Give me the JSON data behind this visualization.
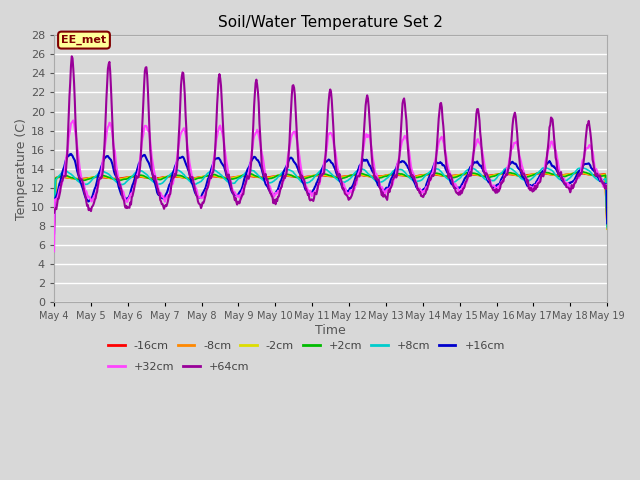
{
  "title": "Soil/Water Temperature Set 2",
  "xlabel": "Time",
  "ylabel": "Temperature (C)",
  "ylim": [
    0,
    28
  ],
  "yticks": [
    0,
    2,
    4,
    6,
    8,
    10,
    12,
    14,
    16,
    18,
    20,
    22,
    24,
    26,
    28
  ],
  "bg_color": "#d8d8d8",
  "plot_bg_color": "#d8d8d8",
  "grid_color": "#ffffff",
  "annotation_text": "EE_met",
  "annotation_bg": "#ffff99",
  "annotation_border": "#800000",
  "series": {
    "-16cm": {
      "color": "#ff0000",
      "lw": 1.2
    },
    "-8cm": {
      "color": "#ff8800",
      "lw": 1.2
    },
    "-2cm": {
      "color": "#dddd00",
      "lw": 1.2
    },
    "+2cm": {
      "color": "#00bb00",
      "lw": 1.2
    },
    "+8cm": {
      "color": "#00cccc",
      "lw": 1.2
    },
    "+16cm": {
      "color": "#0000cc",
      "lw": 1.5
    },
    "+32cm": {
      "color": "#ff44ff",
      "lw": 1.5
    },
    "+64cm": {
      "color": "#990099",
      "lw": 1.5
    }
  },
  "x_tick_labels": [
    "May 4",
    "May 5",
    "May 6",
    "May 7",
    "May 8",
    "May 9",
    "May 10",
    "May 11",
    "May 12",
    "May 13",
    "May 14",
    "May 15",
    "May 16",
    "May 17",
    "May 18",
    "May 19"
  ]
}
